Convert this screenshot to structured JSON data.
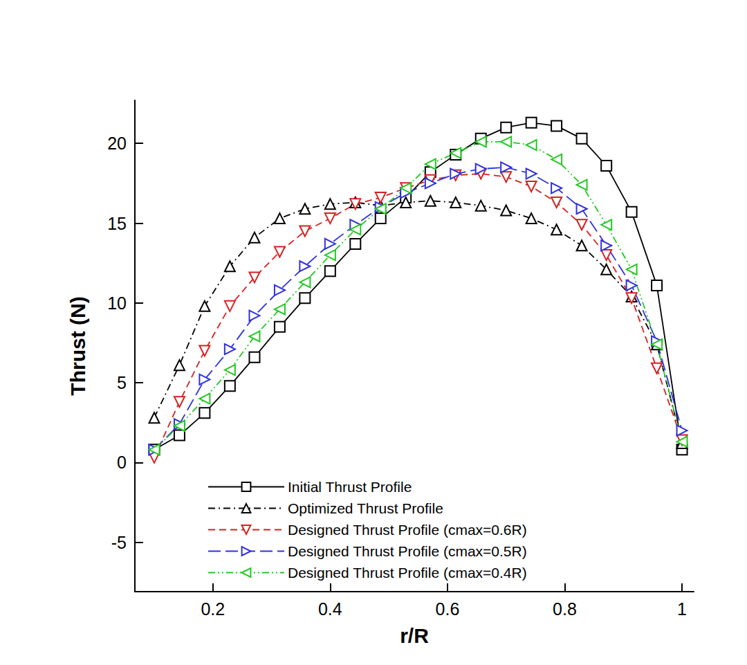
{
  "chart_data": {
    "type": "line",
    "x_label": "r/R",
    "y_label": "Thrust (N)",
    "x": [
      0.1,
      0.143,
      0.186,
      0.229,
      0.271,
      0.314,
      0.357,
      0.4,
      0.443,
      0.486,
      0.529,
      0.571,
      0.614,
      0.657,
      0.7,
      0.743,
      0.786,
      0.829,
      0.871,
      0.914,
      0.957,
      1.0
    ],
    "series": [
      {
        "name": "Initial Thrust Profile",
        "color": "#000000",
        "marker": "square",
        "line_style": "solid",
        "values": [
          0.8,
          1.7,
          3.1,
          4.8,
          6.6,
          8.5,
          10.3,
          12.0,
          13.7,
          15.3,
          16.6,
          18.2,
          19.3,
          20.3,
          21.0,
          21.3,
          21.1,
          20.3,
          18.6,
          15.7,
          11.1,
          0.8
        ]
      },
      {
        "name": "Optimized Thrust Profile",
        "color": "#000000",
        "marker": "triangle-up",
        "line_style": "dashdot",
        "values": [
          2.8,
          6.1,
          9.8,
          12.3,
          14.1,
          15.3,
          15.9,
          16.2,
          16.3,
          16.1,
          16.3,
          16.4,
          16.3,
          16.1,
          15.8,
          15.3,
          14.6,
          13.6,
          12.1,
          10.4,
          7.4,
          1.2
        ]
      },
      {
        "name": "Designed Thrust Profile (cmax=0.6R)",
        "color": "#d62020",
        "marker": "triangle-down",
        "line_style": "dashed",
        "values": [
          0.3,
          3.8,
          7.0,
          9.8,
          11.6,
          13.2,
          14.5,
          15.3,
          16.2,
          16.6,
          17.2,
          17.7,
          18.0,
          18.1,
          17.9,
          17.3,
          16.3,
          14.9,
          13.0,
          10.3,
          5.9,
          1.4
        ]
      },
      {
        "name": "Designed Thrust Profile (cmax=0.5R)",
        "color": "#3030e0",
        "marker": "triangle-right",
        "line_style": "longdash",
        "values": [
          0.8,
          2.4,
          5.2,
          7.1,
          9.2,
          10.8,
          12.3,
          13.7,
          14.9,
          16.0,
          16.9,
          17.5,
          18.1,
          18.4,
          18.5,
          18.1,
          17.2,
          15.9,
          13.6,
          11.1,
          7.6,
          2.0
        ]
      },
      {
        "name": "Designed Thrust Profile (cmax=0.4R)",
        "color": "#22c822",
        "marker": "triangle-left",
        "line_style": "dashdotdot",
        "values": [
          0.8,
          2.3,
          4.0,
          5.8,
          7.9,
          9.6,
          11.3,
          13.0,
          14.6,
          15.9,
          17.2,
          18.7,
          19.4,
          20.1,
          20.1,
          19.9,
          19.0,
          17.4,
          14.9,
          12.1,
          7.4,
          1.3
        ]
      }
    ],
    "xlim": [
      0.067,
      1.02
    ],
    "ylim": [
      -8.1,
      22.7
    ],
    "xticks": [
      0.2,
      0.4,
      0.6,
      0.8,
      1
    ],
    "yticks": [
      -5,
      0,
      5,
      10,
      15,
      20
    ],
    "grid": false,
    "legend": "bottom"
  }
}
